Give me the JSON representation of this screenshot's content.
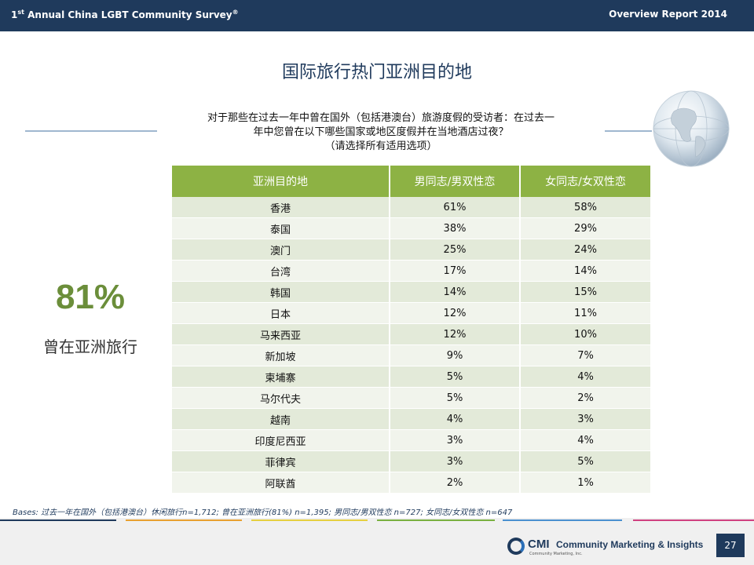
{
  "header": {
    "survey_title_prefix": "1",
    "survey_title_sup": "st",
    "survey_title_main": " Annual China LGBT Community Survey",
    "survey_title_mark": "®",
    "report_title": "Overview Report 2014"
  },
  "slide": {
    "title": "国际旅行热门亚洲目的地",
    "question_line1": "对于那些在过去一年中曾在国外（包括港澳台）旅游度假的受访者：在过去一",
    "question_line2": "年中您曾在以下哪些国家或地区度假并在当地酒店过夜？",
    "question_line3": "（请选择所有适用选项）"
  },
  "stat": {
    "percent": "81%",
    "label": "曾在亚洲旅行"
  },
  "table": {
    "headers": [
      "亚洲目的地",
      "男同志/男双性恋",
      "女同志/女双性恋"
    ],
    "rows": [
      [
        "香港",
        "61%",
        "58%"
      ],
      [
        "泰国",
        "38%",
        "29%"
      ],
      [
        "澳门",
        "25%",
        "24%"
      ],
      [
        "台湾",
        "17%",
        "14%"
      ],
      [
        "韩国",
        "14%",
        "15%"
      ],
      [
        "日本",
        "12%",
        "11%"
      ],
      [
        "马来西亚",
        "12%",
        "10%"
      ],
      [
        "新加坡",
        "9%",
        "7%"
      ],
      [
        "柬埔寨",
        "5%",
        "4%"
      ],
      [
        "马尔代夫",
        "5%",
        "2%"
      ],
      [
        "越南",
        "4%",
        "3%"
      ],
      [
        "印度尼西亚",
        "3%",
        "4%"
      ],
      [
        "菲律宾",
        "3%",
        "5%"
      ],
      [
        "阿联酋",
        "2%",
        "1%"
      ]
    ]
  },
  "bases": "Bases: 过去一年在国外（包括港澳台）休闲旅行n=1,712; 曾在亚洲旅行(81%) n=1,395; 男同志/男双性恋 n=727; 女同志/女双性恋 n=647",
  "footer": {
    "logo_cmi": "CMI",
    "logo_name": "Community Marketing & Insights",
    "logo_sub": "Community Marketing, Inc.",
    "page_number": "27"
  },
  "colors": {
    "header_bg": "#1f3a5c",
    "table_header": "#8db244",
    "stat_green": "#6b8e3a",
    "footer_segments": [
      "#1f3a5c",
      "#e8a030",
      "#e6d040",
      "#79b040",
      "#4a90d0",
      "#a050a0",
      "#d04080"
    ]
  },
  "icons": {
    "globe": "globe-icon",
    "logo": "cmi-logo-icon"
  }
}
